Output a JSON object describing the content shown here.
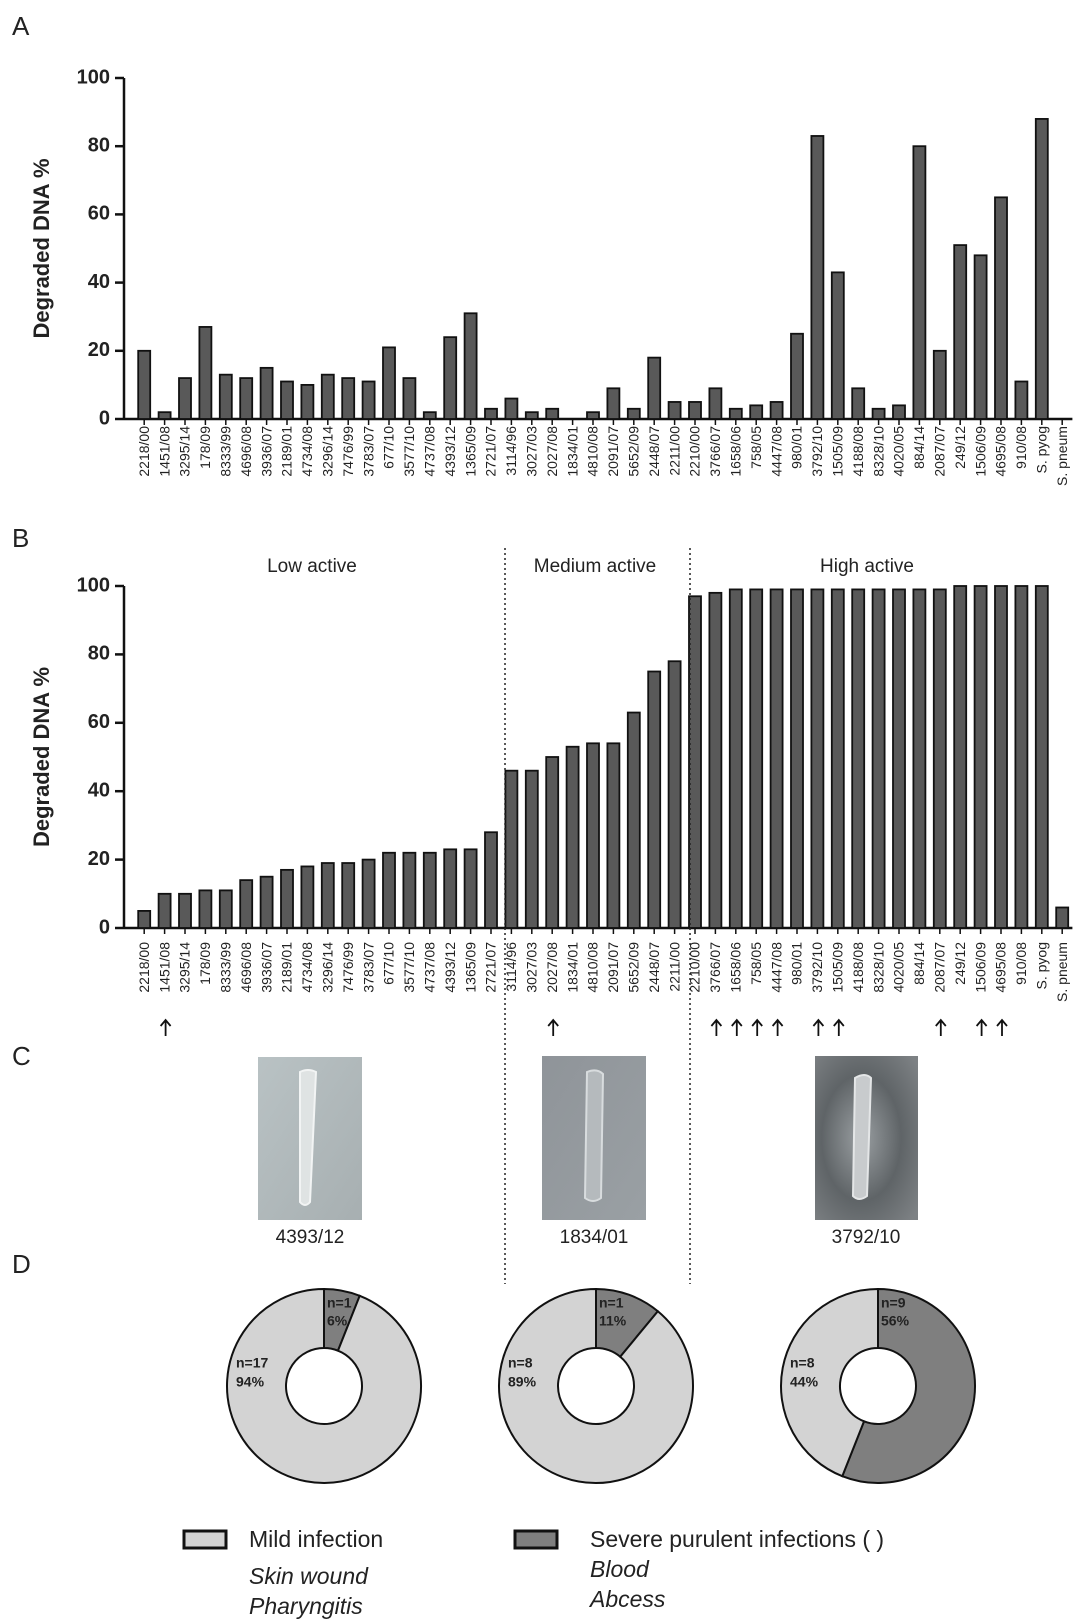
{
  "panel_labels": [
    "A",
    "B",
    "C",
    "D"
  ],
  "chart_data": [
    {
      "type": "bar",
      "ylabel": "Degraded DNA %",
      "ylim": [
        0,
        100
      ],
      "yticks": [
        0,
        20,
        40,
        60,
        80,
        100
      ],
      "color": "#595959",
      "categories": [
        "2218/00",
        "1451/08",
        "3295/14",
        "178/09",
        "8333/99",
        "4696/08",
        "3936/07",
        "2189/01",
        "4734/08",
        "3296/14",
        "7476/99",
        "3783/07",
        "677/10",
        "3577/10",
        "4737/08",
        "4393/12",
        "1365/09",
        "2721/07",
        "3114/96",
        "3027/03",
        "2027/08",
        "1834/01",
        "4810/08",
        "2091/07",
        "5652/09",
        "2448/07",
        "2211/00",
        "2210/00",
        "3766/07",
        "1658/06",
        "758/05",
        "4447/08",
        "980/01",
        "3792/10",
        "1505/09",
        "4188/08",
        "8328/10",
        "4020/05",
        "884/14",
        "2087/07",
        "249/12",
        "1506/09",
        "4695/08",
        "910/08",
        "S. pyog",
        "S. pneum"
      ],
      "values": [
        20,
        2,
        12,
        27,
        13,
        12,
        15,
        11,
        10,
        13,
        12,
        11,
        21,
        12,
        2,
        24,
        31,
        3,
        6,
        2,
        3,
        0,
        2,
        9,
        3,
        18,
        5,
        5,
        9,
        3,
        4,
        5,
        25,
        83,
        43,
        9,
        3,
        4,
        80,
        20,
        51,
        48,
        65,
        11,
        88,
        0
      ]
    },
    {
      "type": "bar",
      "ylabel": "Degraded DNA %",
      "ylim": [
        0,
        100
      ],
      "yticks": [
        0,
        20,
        40,
        60,
        80,
        100
      ],
      "color": "#595959",
      "group_labels": [
        "Low active",
        "Medium active",
        "High active"
      ],
      "categories": [
        "2218/00",
        "1451/08",
        "3295/14",
        "178/09",
        "8333/99",
        "4696/08",
        "3936/07",
        "2189/01",
        "4734/08",
        "3296/14",
        "7476/99",
        "3783/07",
        "677/10",
        "3577/10",
        "4737/08",
        "4393/12",
        "1365/09",
        "2721/07",
        "3114/96",
        "3027/03",
        "2027/08",
        "1834/01",
        "4810/08",
        "2091/07",
        "5652/09",
        "2448/07",
        "2211/00",
        "2210/00",
        "3766/07",
        "1658/06",
        "758/05",
        "4447/08",
        "980/01",
        "3792/10",
        "1505/09",
        "4188/08",
        "8328/10",
        "4020/05",
        "884/14",
        "2087/07",
        "249/12",
        "1506/09",
        "4695/08",
        "910/08",
        "S. pyog",
        "S. pneum"
      ],
      "values": [
        5,
        10,
        10,
        11,
        11,
        14,
        15,
        17,
        18,
        19,
        19,
        20,
        22,
        22,
        22,
        23,
        23,
        28,
        46,
        46,
        50,
        53,
        54,
        54,
        63,
        75,
        78,
        97,
        98,
        99,
        99,
        99,
        99,
        99,
        99,
        99,
        99,
        99,
        99,
        99,
        100,
        100,
        100,
        100,
        100,
        6
      ],
      "arrow_categories": [
        "1451/08",
        "2027/08",
        "3766/07",
        "1658/06",
        "758/05",
        "4447/08",
        "3792/10",
        "1505/09",
        "2087/07",
        "1506/09",
        "4695/08"
      ]
    },
    {
      "type": "pie",
      "values": [
        94,
        6
      ],
      "value_labels": [
        "94%",
        "6%"
      ],
      "count_labels": [
        "n=17",
        "n=1"
      ],
      "colors": [
        "#d3d3d3",
        "#7f7f7f"
      ]
    },
    {
      "type": "pie",
      "values": [
        89,
        11
      ],
      "value_labels": [
        "89%",
        "11%"
      ],
      "count_labels": [
        "n=8",
        "n=1"
      ],
      "colors": [
        "#d3d3d3",
        "#7f7f7f"
      ]
    },
    {
      "type": "pie",
      "values": [
        44,
        56
      ],
      "value_labels": [
        "44%",
        "56%"
      ],
      "count_labels": [
        "n=8",
        "n=9"
      ],
      "colors": [
        "#d3d3d3",
        "#7f7f7f"
      ]
    }
  ],
  "images": [
    {
      "label": "4393/12"
    },
    {
      "label": "1834/01"
    },
    {
      "label": "3792/10"
    }
  ],
  "legend": [
    {
      "name": "Mild infection",
      "color": "#d3d3d3",
      "examples": [
        "Skin wound",
        "Pharyngitis"
      ]
    },
    {
      "name": "Severe purulent infections (  )",
      "color": "#7f7f7f",
      "examples": [
        "Blood",
        "Abcess"
      ]
    }
  ]
}
